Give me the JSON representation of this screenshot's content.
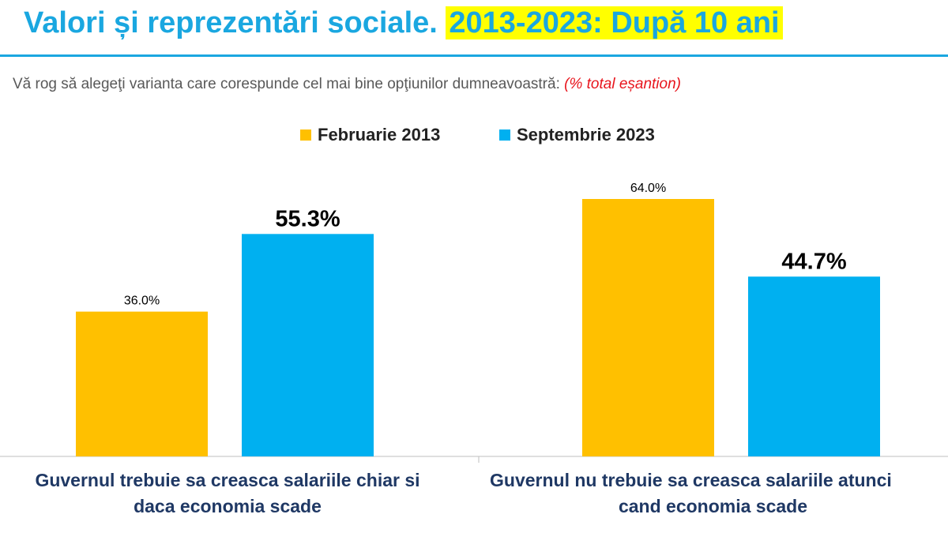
{
  "header": {
    "title_main": "Valori și reprezentări sociale.",
    "title_highlight": "2013-2023: După 10 ani"
  },
  "question": {
    "text": "Vă rog să alegeţi varianta care corespunde cel mai bine opţiunilor dumneavoastră:",
    "note": "(% total eșantion)"
  },
  "colors": {
    "series_2013": "#ffc000",
    "series_2023": "#00b0f0",
    "accent": "#1aa7e0"
  },
  "chart_data": {
    "type": "bar",
    "title": "Valori și reprezentări sociale. 2013-2023: După 10 ani",
    "categories": [
      [
        "Guvernul trebuie sa creasca salariile chiar si",
        "daca economia scade"
      ],
      [
        "Guvernul nu trebuie sa creasca salariile atunci",
        "cand economia scade"
      ]
    ],
    "series": [
      {
        "name": "Februarie 2013",
        "values": [
          36.0,
          64.0
        ],
        "labels": [
          "36.0%",
          "64.0%"
        ]
      },
      {
        "name": "Septembrie 2023",
        "values": [
          55.3,
          44.7
        ],
        "labels": [
          "55.3%",
          "44.7%"
        ]
      }
    ],
    "ylim": [
      0,
      70
    ],
    "xlabel": "",
    "ylabel": "",
    "grid": false,
    "legend": "top-center"
  }
}
